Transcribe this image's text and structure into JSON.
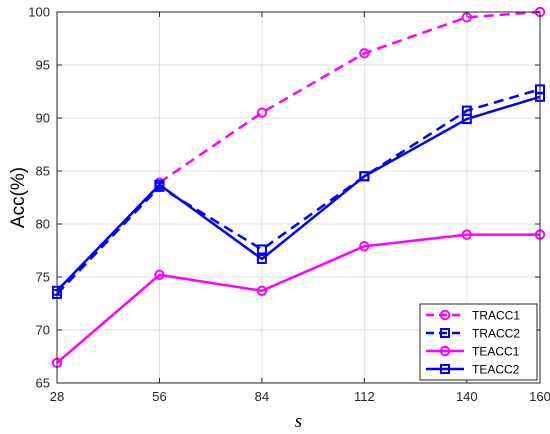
{
  "chart_data": {
    "type": "line",
    "xlabel": "s",
    "ylabel": "Acc(%)",
    "x": [
      28,
      56,
      84,
      112,
      140,
      160
    ],
    "x_ticks": [
      "28",
      "56",
      "84",
      "112",
      "140",
      "160"
    ],
    "ylim": [
      65,
      100
    ],
    "y_ticks": [
      "65",
      "70",
      "75",
      "80",
      "85",
      "90",
      "95",
      "100"
    ],
    "grid": true,
    "legend_position": "bottom-right",
    "series": [
      {
        "name": "TRACC1",
        "values": [
          null,
          83.9,
          90.5,
          96.1,
          99.5,
          100.0
        ],
        "color": "#ff00ff",
        "dash": true,
        "marker": "circle"
      },
      {
        "name": "TRACC2",
        "values": [
          73.4,
          83.5,
          77.6,
          84.5,
          90.7,
          92.7
        ],
        "color": "#0000ff",
        "dash": true,
        "marker": "square"
      },
      {
        "name": "TEACC1",
        "values": [
          66.9,
          75.2,
          73.7,
          77.9,
          79.0,
          79.0
        ],
        "color": "#ff00ff",
        "dash": false,
        "marker": "circle"
      },
      {
        "name": "TEACC2",
        "values": [
          73.7,
          83.7,
          76.7,
          84.5,
          89.9,
          92.0
        ],
        "color": "#0000ff",
        "dash": false,
        "marker": "square"
      }
    ]
  }
}
